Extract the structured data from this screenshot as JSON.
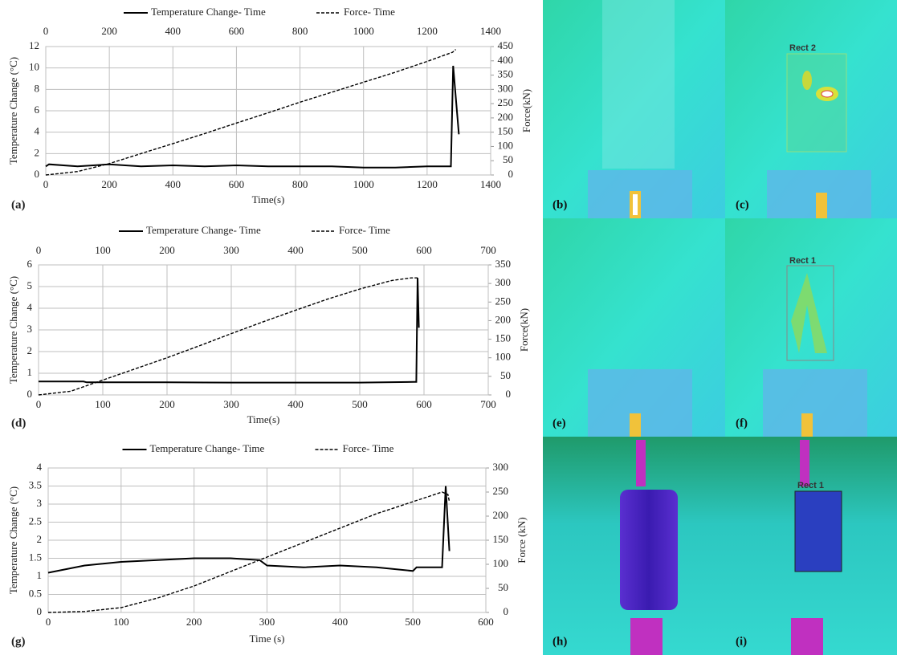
{
  "chart_data": [
    {
      "type": "line",
      "panel_label": "(a)",
      "xlabel": "Time(s)",
      "ylabel": "Temperature Change (°C)",
      "y2label": "Force(kN)",
      "xlim": [
        0,
        1400
      ],
      "xticks": [
        0,
        200,
        400,
        600,
        800,
        1000,
        1200,
        1400
      ],
      "top_xaxis": true,
      "ylim": [
        0,
        12
      ],
      "yticks": [
        0,
        2,
        4,
        6,
        8,
        10,
        12
      ],
      "y2lim": [
        0,
        450
      ],
      "y2ticks": [
        0,
        50,
        100,
        150,
        200,
        250,
        300,
        350,
        400,
        450
      ],
      "grid": true,
      "legend": "top",
      "series": [
        {
          "name": "Temperature Change- Time",
          "color": "#000000",
          "dash": false,
          "width": 2,
          "x": [
            0,
            10,
            100,
            200,
            300,
            400,
            500,
            600,
            700,
            800,
            900,
            1000,
            1100,
            1200,
            1275,
            1282,
            1300
          ],
          "values": [
            0.8,
            1.0,
            0.8,
            1.0,
            0.8,
            0.9,
            0.8,
            0.9,
            0.8,
            0.8,
            0.8,
            0.7,
            0.7,
            0.8,
            0.8,
            10.2,
            3.8
          ]
        },
        {
          "name": "Force- Time",
          "color": "#000000",
          "dash": true,
          "width": 1.4,
          "axis": "y2",
          "x": [
            0,
            100,
            200,
            300,
            400,
            500,
            600,
            700,
            800,
            900,
            1000,
            1100,
            1200,
            1280,
            1290
          ],
          "values": [
            0,
            12,
            40,
            75,
            110,
            145,
            182,
            218,
            255,
            290,
            325,
            360,
            398,
            430,
            440
          ]
        }
      ]
    },
    {
      "type": "line",
      "panel_label": "(d)",
      "xlabel": "Time(s)",
      "ylabel": "Temperature Change (°C)",
      "y2label": "Force(kN)",
      "xlim": [
        0,
        700
      ],
      "xticks": [
        0,
        100,
        200,
        300,
        400,
        500,
        600,
        700
      ],
      "top_xaxis": true,
      "ylim": [
        0,
        6
      ],
      "yticks": [
        0,
        1,
        2,
        3,
        4,
        5,
        6
      ],
      "y2lim": [
        0,
        350
      ],
      "y2ticks": [
        0,
        50,
        100,
        150,
        200,
        250,
        300,
        350
      ],
      "grid": true,
      "legend": "top",
      "series": [
        {
          "name": "Temperature Change- Time",
          "color": "#000000",
          "dash": false,
          "width": 2,
          "x": [
            0,
            70,
            75,
            100,
            200,
            300,
            400,
            500,
            585,
            588,
            590,
            592
          ],
          "values": [
            0.62,
            0.62,
            0.58,
            0.58,
            0.58,
            0.57,
            0.57,
            0.57,
            0.6,
            0.6,
            5.4,
            3.1
          ]
        },
        {
          "name": "Force- Time",
          "color": "#000000",
          "dash": true,
          "width": 1.4,
          "axis": "y2",
          "x": [
            0,
            50,
            100,
            150,
            200,
            250,
            300,
            350,
            400,
            450,
            500,
            550,
            580,
            590
          ],
          "values": [
            0,
            10,
            40,
            70,
            100,
            132,
            165,
            197,
            228,
            258,
            285,
            308,
            315,
            315
          ]
        }
      ]
    },
    {
      "type": "line",
      "panel_label": "(g)",
      "xlabel": "Time (s)",
      "ylabel": "Temperature Change (°C)",
      "y2label": "Force (kN)",
      "xlim": [
        0,
        600
      ],
      "xticks": [
        0,
        100,
        200,
        300,
        400,
        500,
        600
      ],
      "top_xaxis": false,
      "ylim": [
        0,
        4
      ],
      "yticks": [
        0,
        0.5,
        1,
        1.5,
        2,
        2.5,
        3,
        3.5,
        4
      ],
      "y2lim": [
        0,
        300
      ],
      "y2ticks": [
        0,
        50,
        100,
        150,
        200,
        250,
        300
      ],
      "grid": true,
      "legend": "top",
      "series": [
        {
          "name": "Temperature Change- Time",
          "color": "#000000",
          "dash": false,
          "width": 2,
          "x": [
            0,
            50,
            100,
            150,
            200,
            250,
            290,
            300,
            350,
            400,
            450,
            500,
            505,
            540,
            545,
            550
          ],
          "values": [
            1.1,
            1.3,
            1.4,
            1.45,
            1.5,
            1.5,
            1.45,
            1.3,
            1.25,
            1.3,
            1.25,
            1.15,
            1.25,
            1.25,
            3.5,
            1.7
          ]
        },
        {
          "name": "Force- Time",
          "color": "#000000",
          "dash": true,
          "width": 1.4,
          "axis": "y2",
          "x": [
            0,
            50,
            100,
            150,
            200,
            250,
            300,
            350,
            400,
            450,
            500,
            540,
            548,
            550
          ],
          "values": [
            0,
            2,
            10,
            30,
            55,
            85,
            115,
            145,
            175,
            205,
            230,
            250,
            245,
            230
          ]
        }
      ]
    }
  ],
  "images": [
    {
      "label": "(b)"
    },
    {
      "label": "(c)",
      "roi": "Rect 2"
    },
    {
      "label": "(e)"
    },
    {
      "label": "(f)",
      "roi": "Rect 1"
    },
    {
      "label": "(h)"
    },
    {
      "label": "(i)",
      "roi": "Rect 1"
    }
  ]
}
